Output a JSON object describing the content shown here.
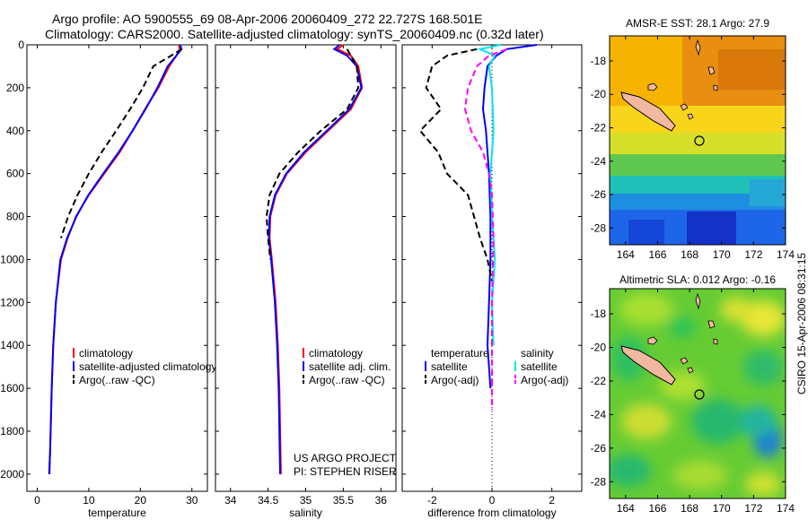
{
  "header": {
    "line1": "Argo profile: AO 5900555_69 08-Apr-2006 20060409_272 22.727S 168.501E",
    "line2": "Climatology: CARS2000. Satellite-adjusted climatology: synTS_20060409.nc (0.32d later)"
  },
  "side_stamp": "CSIRO 15-Apr-2006 08:31:15",
  "colors": {
    "climatology": "#ff0000",
    "satellite_adjusted": "#0000ff",
    "argo": "#000000",
    "satellite_diff": "#00e5ee",
    "argo_salinity_diff": "#ff00ff"
  },
  "chart_data": [
    {
      "type": "line",
      "panel": "temperature",
      "xlabel": "temperature",
      "xlim": [
        -2,
        33
      ],
      "xticks": [
        0,
        10,
        20,
        30
      ],
      "ylim": [
        2080,
        0
      ],
      "yticks": [
        0,
        200,
        400,
        600,
        800,
        1000,
        1200,
        1400,
        1600,
        1800,
        2000
      ],
      "series": [
        {
          "name": "climatology",
          "color": "#ff0000",
          "dash": "",
          "x": [
            27.5,
            27.6,
            27.0,
            25.6,
            23.5,
            20.9,
            18.5,
            16.0,
            13.0,
            10.0,
            7.5,
            5.9,
            4.6,
            3.6,
            3.1,
            2.8,
            2.6,
            2.5,
            2.4,
            2.4
          ],
          "y": [
            0,
            20,
            50,
            100,
            200,
            300,
            400,
            500,
            600,
            700,
            800,
            900,
            1000,
            1200,
            1400,
            1600,
            1800,
            1900,
            1950,
            2000
          ]
        },
        {
          "name": "satellite-adjusted climatology",
          "color": "#0000ff",
          "dash": "",
          "x": [
            27.7,
            28.0,
            27.0,
            25.3,
            23.3,
            21.0,
            18.5,
            15.8,
            12.8,
            9.9,
            7.6,
            5.8,
            4.5,
            3.6,
            3.1,
            2.8,
            2.6,
            2.5,
            2.4,
            2.3
          ],
          "y": [
            0,
            20,
            50,
            100,
            200,
            300,
            400,
            500,
            600,
            700,
            800,
            900,
            1000,
            1200,
            1400,
            1600,
            1800,
            1900,
            1950,
            2000
          ]
        },
        {
          "name": "Argo(..raw -QC)",
          "color": "#000000",
          "dash": "7,4",
          "x": [
            28.0,
            26.0,
            22.5,
            20.5,
            18.0,
            15.3,
            12.5,
            10.0,
            7.8,
            6.0,
            4.6
          ],
          "y": [
            20,
            50,
            100,
            200,
            300,
            400,
            500,
            600,
            700,
            800,
            900
          ]
        }
      ],
      "legend": [
        "climatology",
        "satellite-adjusted climatology",
        "Argo(..raw -QC)"
      ],
      "legend_position": "lower-middle"
    },
    {
      "type": "line",
      "panel": "salinity",
      "xlabel": "salinity",
      "xlim": [
        33.8,
        36.2
      ],
      "xticks": [
        34,
        34.5,
        35,
        35.5,
        36
      ],
      "xtick_labels": [
        "34",
        "34.5",
        "35",
        "35.5",
        "36"
      ],
      "ylim": [
        2080,
        0
      ],
      "series": [
        {
          "name": "climatology",
          "color": "#ff0000",
          "dash": "",
          "x": [
            35.5,
            35.42,
            35.6,
            35.7,
            35.75,
            35.6,
            35.3,
            35.0,
            34.75,
            34.6,
            34.53,
            34.52,
            34.55,
            34.6,
            34.63,
            34.65,
            34.67
          ],
          "y": [
            0,
            20,
            50,
            100,
            200,
            300,
            400,
            500,
            600,
            700,
            800,
            900,
            1000,
            1200,
            1400,
            1600,
            2000
          ]
        },
        {
          "name": "satellite adj. clim.",
          "color": "#0000ff",
          "dash": "",
          "x": [
            35.45,
            35.38,
            35.55,
            35.68,
            35.74,
            35.58,
            35.28,
            34.98,
            34.74,
            34.59,
            34.52,
            34.51,
            34.54,
            34.59,
            34.62,
            34.64,
            34.66
          ],
          "y": [
            0,
            20,
            50,
            100,
            200,
            300,
            400,
            500,
            600,
            700,
            800,
            900,
            1000,
            1200,
            1400,
            1600,
            2000
          ]
        },
        {
          "name": "Argo(..raw -QC)",
          "color": "#000000",
          "dash": "7,4",
          "x": [
            35.55,
            35.6,
            35.68,
            35.7,
            35.55,
            35.2,
            34.9,
            34.65,
            34.52,
            34.48,
            34.5,
            34.53
          ],
          "y": [
            20,
            50,
            100,
            200,
            300,
            400,
            500,
            600,
            700,
            800,
            900,
            1000
          ]
        }
      ],
      "legend": [
        "climatology",
        "satellite adj. clim.",
        "Argo(..raw -QC)"
      ],
      "legend_position": "lower-middle"
    },
    {
      "type": "line",
      "panel": "difference",
      "xlabel": "difference from climatology",
      "xlim": [
        -3.0,
        3.0
      ],
      "xticks": [
        -2,
        0,
        2
      ],
      "ylim": [
        2080,
        0
      ],
      "zero_line": true,
      "series": [
        {
          "name": "temperature satellite",
          "color": "#0000ff",
          "dash": "",
          "x": [
            1.5,
            0.5,
            0.15,
            -0.15,
            -0.25,
            -0.3,
            -0.2,
            -0.1,
            -0.05,
            -0.05,
            -0.1,
            -0.15,
            -0.1,
            -0.05
          ],
          "y": [
            0,
            20,
            50,
            100,
            200,
            300,
            400,
            600,
            800,
            1000,
            1200,
            1400,
            1500,
            1600
          ]
        },
        {
          "name": "temperature Argo(-adj)",
          "color": "#000000",
          "dash": "7,4",
          "x": [
            -0.5,
            -1.5,
            -2.0,
            -2.2,
            -1.7,
            -2.4,
            -1.8,
            -1.5,
            -0.8,
            -0.6,
            -0.4,
            -0.15,
            0.0
          ],
          "y": [
            20,
            50,
            100,
            200,
            300,
            400,
            500,
            600,
            700,
            800,
            900,
            1000,
            1100
          ]
        },
        {
          "name": "salinity satellite",
          "color": "#00e5ee",
          "dash": "",
          "x": [
            0.3,
            -0.4,
            0.1,
            -0.1,
            0.0,
            0.05,
            -0.05,
            0.0,
            0.1,
            0.0,
            0.05
          ],
          "y": [
            0,
            20,
            50,
            100,
            200,
            400,
            600,
            800,
            1000,
            1200,
            1400
          ]
        },
        {
          "name": "salinity Argo(-adj)",
          "color": "#ff00ff",
          "dash": "7,4",
          "x": [
            0.5,
            -0.1,
            -0.5,
            -0.8,
            -0.9,
            -0.7,
            -0.3,
            -0.1,
            0.0,
            0.05,
            0.0,
            0.0
          ],
          "y": [
            20,
            50,
            100,
            200,
            300,
            400,
            500,
            600,
            700,
            900,
            1200,
            1700
          ]
        }
      ],
      "legend_left_title": "temperature",
      "legend_right_title": "salinity",
      "legend_left": [
        "satellite",
        "Argo(-adj)"
      ],
      "legend_right": [
        "satellite",
        "Argo(-adj)"
      ]
    },
    {
      "type": "heatmap",
      "panel": "AMSR-E SST map",
      "title": "AMSR-E SST: 28.1 Argo: 27.9",
      "xlim": [
        163,
        174
      ],
      "xticks": [
        164,
        166,
        168,
        170,
        172,
        174
      ],
      "ylim": [
        -29,
        -16.5
      ],
      "yticks": [
        -18,
        -20,
        -22,
        -24,
        -26,
        -28
      ],
      "profile_location": [
        168.5,
        -22.7
      ]
    },
    {
      "type": "heatmap",
      "panel": "Altimetric SLA map",
      "title": "Altimetric SLA: 0.012 Argo: -0.16",
      "xlim": [
        163,
        174
      ],
      "xticks": [
        164,
        166,
        168,
        170,
        172,
        174
      ],
      "ylim": [
        -29,
        -16.5
      ],
      "yticks": [
        -18,
        -20,
        -22,
        -24,
        -26,
        -28
      ],
      "profile_location": [
        168.5,
        -22.7
      ]
    }
  ],
  "annotation": {
    "line1": "US ARGO PROJECT",
    "line2": "PI: STEPHEN RISER"
  }
}
